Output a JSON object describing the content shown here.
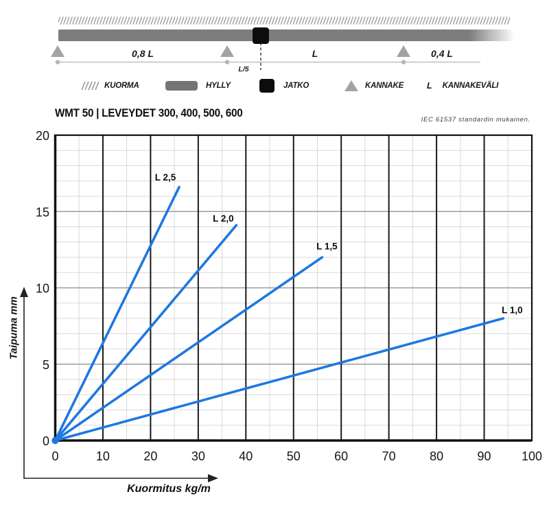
{
  "beam": {
    "span_labels": {
      "left": "0,8 L",
      "middle": "L",
      "right": "0,4 L"
    },
    "joint_offset_label": "L/5"
  },
  "legend": {
    "items": [
      {
        "icon": "kuorma-hatch-icon",
        "label": "KUORMA"
      },
      {
        "icon": "hylly-bar-icon",
        "label": "HYLLY"
      },
      {
        "icon": "jatko-square-icon",
        "label": "JATKO"
      },
      {
        "icon": "kannake-triangle-icon",
        "label": "KANNAKE"
      },
      {
        "icon": "kannakevali-letter-icon",
        "icon_glyph": "L",
        "label": "KANNAKEVÄLI"
      }
    ]
  },
  "header": {
    "title": "WMT 50 | LEVEYDET 300, 400, 500, 600",
    "standard_note": "IEC 61537 standardin mukainen."
  },
  "chart_data": {
    "type": "line",
    "title": "WMT 50 | LEVEYDET 300, 400, 500, 600",
    "xlabel": "Kuormitus kg/m",
    "ylabel": "Taipuma mm",
    "xlim": [
      0,
      100
    ],
    "ylim": [
      0,
      20
    ],
    "xticks": [
      0,
      10,
      20,
      30,
      40,
      50,
      60,
      70,
      80,
      90,
      100
    ],
    "yticks": [
      0,
      5,
      10,
      15,
      20
    ],
    "x_minor_step": 5,
    "y_minor_step": 1,
    "grid": true,
    "legend_position": "inline-labels",
    "line_color": "#1e78e0",
    "series": [
      {
        "name": "L 2,5",
        "x": [
          0,
          26
        ],
        "y": [
          0,
          16.6
        ]
      },
      {
        "name": "L 2,0",
        "x": [
          0,
          38
        ],
        "y": [
          0,
          14.1
        ]
      },
      {
        "name": "L 1,5",
        "x": [
          0,
          56
        ],
        "y": [
          0,
          12.0
        ]
      },
      {
        "name": "L 1,0",
        "x": [
          0,
          94
        ],
        "y": [
          0,
          8.0
        ]
      }
    ]
  }
}
